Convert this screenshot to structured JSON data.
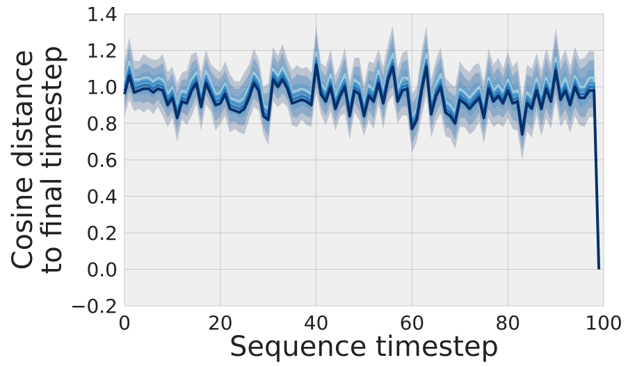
{
  "chart_data": {
    "type": "line",
    "title": "",
    "xlabel": "Sequence timestep",
    "ylabel_lines": [
      "Cosine distance",
      "to final timestep"
    ],
    "xlim": [
      0,
      100
    ],
    "ylim": [
      -0.2,
      1.4
    ],
    "xticks": [
      0,
      20,
      40,
      60,
      80,
      100
    ],
    "xtick_labels": [
      "0",
      "20",
      "40",
      "60",
      "80",
      "100"
    ],
    "yticks": [
      -0.2,
      0.0,
      0.2,
      0.4,
      0.6,
      0.8,
      1.0,
      1.2,
      1.4
    ],
    "ytick_labels": [
      "−0.2",
      "0.0",
      "0.2",
      "0.4",
      "0.6",
      "0.8",
      "1.0",
      "1.2",
      "1.4"
    ],
    "grid": true,
    "background": "#efefef",
    "grid_color": "#c8c8c8",
    "x": [
      0,
      1,
      2,
      3,
      4,
      5,
      6,
      7,
      8,
      9,
      10,
      11,
      12,
      13,
      14,
      15,
      16,
      17,
      18,
      19,
      20,
      21,
      22,
      23,
      24,
      25,
      26,
      27,
      28,
      29,
      30,
      31,
      32,
      33,
      34,
      35,
      36,
      37,
      38,
      39,
      40,
      41,
      42,
      43,
      44,
      45,
      46,
      47,
      48,
      49,
      50,
      51,
      52,
      53,
      54,
      55,
      56,
      57,
      58,
      59,
      60,
      61,
      62,
      63,
      64,
      65,
      66,
      67,
      68,
      69,
      70,
      71,
      72,
      73,
      74,
      75,
      76,
      77,
      78,
      79,
      80,
      81,
      82,
      83,
      84,
      85,
      86,
      87,
      88,
      89,
      90,
      91,
      92,
      93,
      94,
      95,
      96,
      97,
      98,
      99
    ],
    "series": [
      {
        "color": "#9ecae1",
        "values": [
          1.02,
          1.14,
          1.04,
          1.04,
          1.05,
          1.05,
          1.03,
          1.05,
          1.04,
          0.96,
          1.0,
          0.89,
          0.98,
          0.97,
          1.04,
          1.08,
          0.95,
          1.09,
          1.03,
          0.96,
          0.97,
          1.02,
          0.94,
          0.93,
          0.92,
          0.94,
          1.0,
          1.08,
          1.04,
          0.9,
          0.88,
          1.1,
          1.06,
          1.11,
          1.05,
          0.97,
          0.98,
          0.99,
          0.98,
          0.96,
          1.19,
          1.02,
          0.98,
          1.07,
          0.94,
          1.01,
          1.07,
          0.9,
          1.04,
          1.02,
          0.9,
          1.01,
          0.98,
          1.09,
          0.97,
          1.11,
          1.18,
          0.98,
          1.05,
          1.05,
          0.83,
          0.88,
          1.05,
          1.18,
          0.91,
          1.01,
          1.07,
          0.92,
          0.9,
          0.86,
          0.99,
          0.97,
          0.94,
          0.97,
          1.0,
          0.89,
          1.05,
          0.98,
          1.01,
          0.97,
          1.04,
          0.97,
          0.98,
          0.8,
          0.97,
          0.94,
          1.05,
          0.94,
          1.05,
          0.98,
          1.16,
          0.99,
          1.05,
          0.96,
          1.06,
          1.0,
          1.0,
          1.05,
          1.05,
          0.0
        ]
      },
      {
        "color": "#4292c6",
        "values": [
          1.0,
          1.11,
          1.01,
          1.02,
          1.03,
          1.03,
          1.01,
          1.03,
          1.02,
          0.94,
          0.98,
          0.87,
          0.96,
          0.95,
          1.02,
          1.06,
          0.93,
          1.06,
          1.0,
          0.94,
          0.95,
          1.0,
          0.92,
          0.91,
          0.9,
          0.92,
          0.98,
          1.06,
          1.02,
          0.88,
          0.86,
          1.08,
          1.04,
          1.08,
          1.03,
          0.95,
          0.96,
          0.97,
          0.96,
          0.94,
          1.16,
          1.0,
          0.96,
          1.04,
          0.92,
          0.99,
          1.04,
          0.88,
          1.02,
          1.0,
          0.88,
          0.99,
          0.96,
          1.06,
          0.95,
          1.08,
          1.15,
          0.96,
          1.02,
          1.03,
          0.81,
          0.86,
          1.02,
          1.15,
          0.89,
          0.99,
          1.04,
          0.9,
          0.88,
          0.84,
          0.97,
          0.95,
          0.92,
          0.95,
          0.98,
          0.87,
          1.03,
          0.96,
          0.99,
          0.95,
          1.02,
          0.95,
          0.96,
          0.78,
          0.95,
          0.92,
          1.02,
          0.92,
          1.03,
          0.96,
          1.13,
          0.97,
          1.02,
          0.94,
          1.04,
          0.98,
          0.98,
          1.02,
          1.02,
          0.0
        ]
      },
      {
        "color": "#2171b5",
        "values": [
          0.98,
          1.09,
          0.99,
          1.0,
          1.01,
          1.01,
          0.99,
          1.01,
          1.0,
          0.92,
          0.96,
          0.85,
          0.94,
          0.93,
          1.0,
          1.04,
          0.91,
          1.04,
          0.98,
          0.92,
          0.93,
          0.98,
          0.9,
          0.89,
          0.88,
          0.9,
          0.96,
          1.04,
          1.0,
          0.86,
          0.84,
          1.06,
          1.02,
          1.06,
          1.01,
          0.93,
          0.94,
          0.95,
          0.94,
          0.92,
          1.14,
          0.98,
          0.94,
          1.02,
          0.9,
          0.97,
          1.02,
          0.86,
          1.0,
          0.98,
          0.86,
          0.97,
          0.94,
          1.04,
          0.93,
          1.06,
          1.13,
          0.94,
          1.0,
          1.01,
          0.79,
          0.84,
          1.0,
          1.13,
          0.87,
          0.97,
          1.02,
          0.88,
          0.86,
          0.82,
          0.95,
          0.93,
          0.9,
          0.93,
          0.96,
          0.85,
          1.01,
          0.94,
          0.97,
          0.93,
          1.0,
          0.93,
          0.94,
          0.76,
          0.93,
          0.9,
          1.0,
          0.9,
          1.01,
          0.94,
          1.11,
          0.95,
          1.0,
          0.92,
          1.02,
          0.96,
          0.96,
          1.0,
          1.0,
          0.0
        ]
      },
      {
        "color": "#08306b",
        "values": [
          0.96,
          1.06,
          0.97,
          0.98,
          0.99,
          0.99,
          0.97,
          0.99,
          0.98,
          0.9,
          0.94,
          0.83,
          0.92,
          0.91,
          0.98,
          1.02,
          0.89,
          1.02,
          0.96,
          0.9,
          0.91,
          0.96,
          0.88,
          0.87,
          0.86,
          0.88,
          0.94,
          1.02,
          0.98,
          0.84,
          0.82,
          1.04,
          1.0,
          1.04,
          0.99,
          0.91,
          0.92,
          0.93,
          0.92,
          0.9,
          1.12,
          0.96,
          0.92,
          1.0,
          0.88,
          0.95,
          1.0,
          0.84,
          0.98,
          0.96,
          0.84,
          0.95,
          0.92,
          1.02,
          0.91,
          1.04,
          1.11,
          0.92,
          0.98,
          0.99,
          0.77,
          0.82,
          0.98,
          1.11,
          0.85,
          0.95,
          1.0,
          0.86,
          0.84,
          0.8,
          0.93,
          0.91,
          0.88,
          0.91,
          0.94,
          0.83,
          0.99,
          0.92,
          0.95,
          0.91,
          0.98,
          0.91,
          0.92,
          0.74,
          0.91,
          0.88,
          0.98,
          0.88,
          0.99,
          0.92,
          1.09,
          0.93,
          0.98,
          0.9,
          1.0,
          0.94,
          0.94,
          0.98,
          0.98,
          0.0
        ]
      }
    ],
    "bands": [
      {
        "color": "#08306b",
        "opacity": 0.22,
        "spread": [
          0.15,
          0.17,
          0.14,
          0.13,
          0.16,
          0.14,
          0.15,
          0.13,
          0.17,
          0.15,
          0.14,
          0.16,
          0.13,
          0.15,
          0.17,
          0.14,
          0.16,
          0.15,
          0.13,
          0.17,
          0.14,
          0.15,
          0.16,
          0.13,
          0.14,
          0.17,
          0.15,
          0.16,
          0.14,
          0.13,
          0.17,
          0.15,
          0.14,
          0.16,
          0.13,
          0.15,
          0.17,
          0.14,
          0.16,
          0.15,
          0.18,
          0.14,
          0.16,
          0.17,
          0.15,
          0.14,
          0.18,
          0.16,
          0.15,
          0.17,
          0.14,
          0.16,
          0.18,
          0.15,
          0.17,
          0.16,
          0.19,
          0.15,
          0.17,
          0.18,
          0.16,
          0.15,
          0.18,
          0.19,
          0.16,
          0.17,
          0.18,
          0.16,
          0.15,
          0.17,
          0.18,
          0.16,
          0.17,
          0.18,
          0.16,
          0.17,
          0.19,
          0.17,
          0.18,
          0.16,
          0.18,
          0.17,
          0.19,
          0.17,
          0.18,
          0.19,
          0.17,
          0.18,
          0.19,
          0.18,
          0.2,
          0.18,
          0.19,
          0.18,
          0.19,
          0.18,
          0.19,
          0.18,
          0.18,
          0.0
        ]
      },
      {
        "color": "#2171b5",
        "opacity": 0.3,
        "spread": [
          0.1,
          0.12,
          0.09,
          0.09,
          0.11,
          0.1,
          0.1,
          0.09,
          0.12,
          0.1,
          0.1,
          0.11,
          0.09,
          0.1,
          0.12,
          0.1,
          0.11,
          0.1,
          0.09,
          0.12,
          0.1,
          0.1,
          0.11,
          0.09,
          0.1,
          0.12,
          0.1,
          0.11,
          0.1,
          0.09,
          0.12,
          0.1,
          0.1,
          0.11,
          0.09,
          0.1,
          0.12,
          0.1,
          0.11,
          0.1,
          0.13,
          0.1,
          0.11,
          0.12,
          0.1,
          0.1,
          0.13,
          0.11,
          0.1,
          0.12,
          0.1,
          0.11,
          0.13,
          0.1,
          0.12,
          0.11,
          0.14,
          0.1,
          0.12,
          0.13,
          0.11,
          0.1,
          0.13,
          0.14,
          0.11,
          0.12,
          0.13,
          0.11,
          0.1,
          0.12,
          0.13,
          0.11,
          0.12,
          0.13,
          0.11,
          0.12,
          0.14,
          0.12,
          0.13,
          0.11,
          0.13,
          0.12,
          0.14,
          0.12,
          0.13,
          0.14,
          0.12,
          0.13,
          0.14,
          0.13,
          0.15,
          0.13,
          0.14,
          0.13,
          0.14,
          0.13,
          0.14,
          0.13,
          0.13,
          0.0
        ]
      },
      {
        "color": "#4292c6",
        "opacity": 0.35,
        "spread": [
          0.06,
          0.07,
          0.05,
          0.05,
          0.06,
          0.06,
          0.06,
          0.05,
          0.07,
          0.06,
          0.06,
          0.06,
          0.05,
          0.06,
          0.07,
          0.06,
          0.06,
          0.06,
          0.05,
          0.07,
          0.06,
          0.06,
          0.06,
          0.05,
          0.06,
          0.07,
          0.06,
          0.06,
          0.06,
          0.05,
          0.07,
          0.06,
          0.06,
          0.06,
          0.05,
          0.06,
          0.07,
          0.06,
          0.06,
          0.06,
          0.08,
          0.06,
          0.06,
          0.07,
          0.06,
          0.06,
          0.08,
          0.06,
          0.06,
          0.07,
          0.06,
          0.06,
          0.08,
          0.06,
          0.07,
          0.06,
          0.08,
          0.06,
          0.07,
          0.08,
          0.06,
          0.06,
          0.08,
          0.08,
          0.06,
          0.07,
          0.08,
          0.06,
          0.06,
          0.07,
          0.08,
          0.06,
          0.07,
          0.08,
          0.06,
          0.07,
          0.08,
          0.07,
          0.08,
          0.06,
          0.08,
          0.07,
          0.08,
          0.07,
          0.08,
          0.08,
          0.07,
          0.08,
          0.08,
          0.08,
          0.09,
          0.08,
          0.08,
          0.08,
          0.08,
          0.08,
          0.08,
          0.08,
          0.08,
          0.0
        ]
      }
    ]
  }
}
